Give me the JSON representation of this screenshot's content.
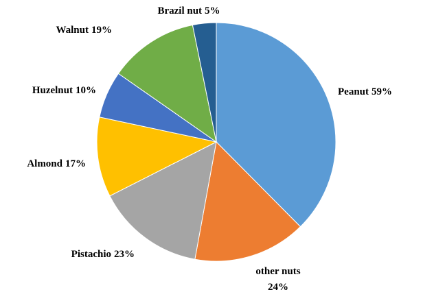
{
  "chart_data": {
    "type": "pie",
    "categories": [
      "Peanut",
      "other nuts",
      "Pistachio",
      "Almond",
      "Huzelnut",
      "Walnut",
      "Brazil nut"
    ],
    "values": [
      59,
      24,
      23,
      17,
      10,
      19,
      5
    ],
    "value_labels": [
      "59%",
      "24%",
      "23%",
      "17%",
      "10%",
      "19%",
      "5%"
    ],
    "colors": [
      "#5b9bd5",
      "#ed7d31",
      "#a5a5a5",
      "#ffc000",
      "#4472c4",
      "#70ad47",
      "#255e91"
    ]
  }
}
